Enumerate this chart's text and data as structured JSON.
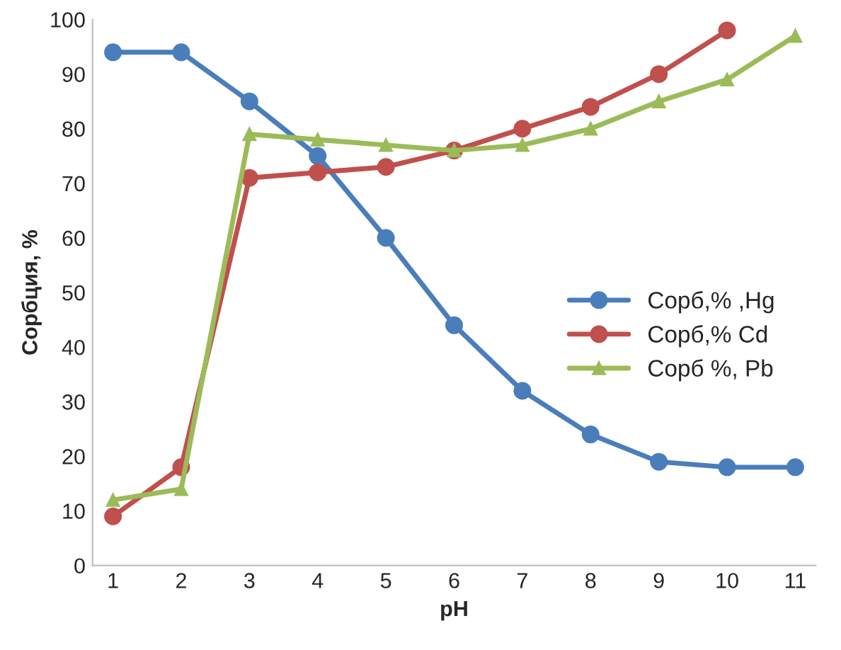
{
  "chart_data": {
    "type": "line",
    "xlabel": "pH",
    "ylabel": "Сорбция, %",
    "x": [
      1,
      2,
      3,
      4,
      5,
      6,
      7,
      8,
      9,
      10,
      11
    ],
    "xlim": [
      0.7,
      11.3
    ],
    "xticks": [
      1,
      2,
      3,
      4,
      5,
      6,
      7,
      8,
      9,
      10,
      11
    ],
    "ylim": [
      0,
      100
    ],
    "yticks": [
      0,
      10,
      20,
      30,
      40,
      50,
      60,
      70,
      80,
      90,
      100
    ],
    "grid": false,
    "legend": "right",
    "line_style": "solid",
    "series": [
      {
        "name": "Сорб,% ,Hg",
        "color": "#4a7ebb",
        "marker": "circle",
        "values": [
          94,
          94,
          85,
          75,
          60,
          44,
          32,
          24,
          19,
          18,
          18
        ]
      },
      {
        "name": "Сорб,% Cd",
        "color": "#c0504d",
        "marker": "circle",
        "values": [
          9,
          18,
          71,
          72,
          73,
          76,
          80,
          84,
          90,
          98,
          null
        ]
      },
      {
        "name": "Сорб %, Pb",
        "color": "#9bbb59",
        "marker": "triangle",
        "values": [
          12,
          14,
          79,
          78,
          77,
          76,
          77,
          80,
          85,
          89,
          97
        ]
      }
    ]
  }
}
